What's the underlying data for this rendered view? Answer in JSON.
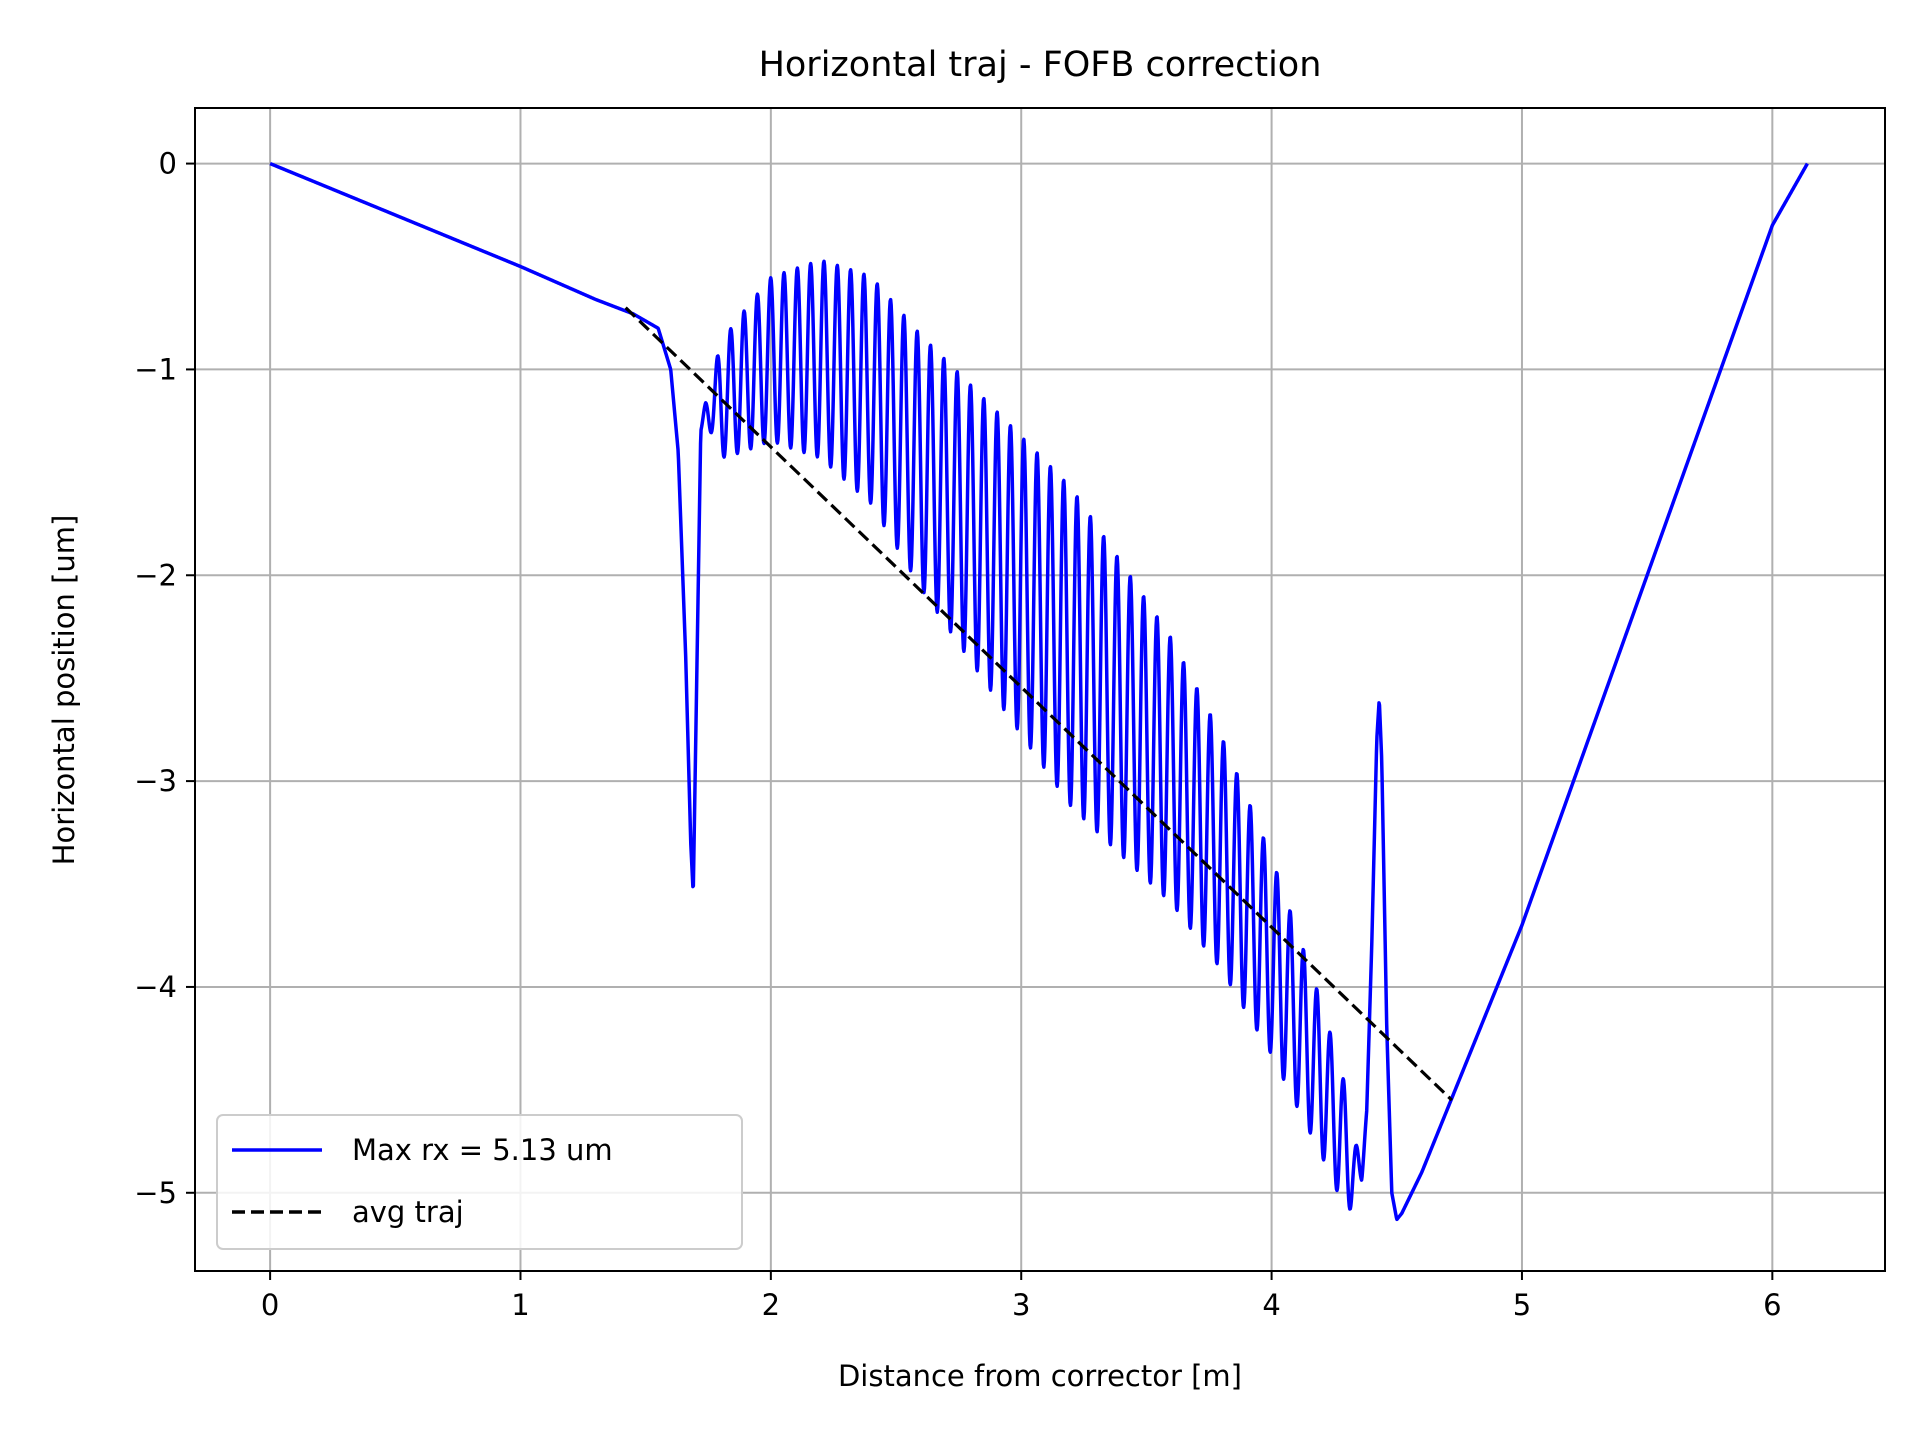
{
  "chart_data": {
    "type": "line",
    "title": "Horizontal traj - FOFB correction",
    "xlabel": "Distance from corrector [m]",
    "ylabel": "Horizontal position [um]",
    "xlim": [
      -0.3,
      6.45
    ],
    "ylim": [
      -5.38,
      0.27
    ],
    "xticks": [
      0,
      1,
      2,
      3,
      4,
      5,
      6
    ],
    "xtick_labels": [
      "0",
      "1",
      "2",
      "3",
      "4",
      "5",
      "6"
    ],
    "yticks": [
      0,
      -1,
      -2,
      -3,
      -4,
      -5
    ],
    "ytick_labels": [
      "0",
      "−1",
      "−2",
      "−3",
      "−4",
      "−5"
    ],
    "grid": true,
    "legend_position": "lower-left",
    "series": [
      {
        "name": "Max rx = 5.13 um",
        "color": "#0000ff",
        "style": "solid",
        "x": [
          0.0,
          0.5,
          1.0,
          1.3,
          1.45,
          1.55,
          1.6,
          1.63,
          1.66,
          1.68,
          1.69,
          1.7,
          1.72,
          1.74,
          1.8,
          2.0,
          2.2,
          2.4,
          2.6,
          2.8,
          3.0,
          3.2,
          3.4,
          3.6,
          3.8,
          4.0,
          4.2,
          4.3,
          4.33,
          4.36,
          4.38,
          4.4,
          4.42,
          4.43,
          4.44,
          4.46,
          4.48,
          4.5,
          4.52,
          4.6,
          4.8,
          5.0,
          5.5,
          6.0,
          6.14
        ],
        "y": [
          0.0,
          -0.25,
          -0.5,
          -0.66,
          -0.73,
          -0.8,
          -1.0,
          -1.4,
          -2.4,
          -3.3,
          -3.55,
          -2.8,
          -1.3,
          -1.2,
          -1.15,
          -0.95,
          -0.95,
          -1.1,
          -1.45,
          -1.75,
          -2.05,
          -2.35,
          -2.65,
          -2.95,
          -3.35,
          -3.85,
          -4.45,
          -4.8,
          -4.9,
          -4.9,
          -4.6,
          -3.8,
          -2.8,
          -2.6,
          -2.9,
          -4.2,
          -5.0,
          -5.13,
          -5.1,
          -4.9,
          -4.3,
          -3.7,
          -2.0,
          -0.3,
          0.0
        ],
        "oscillation": {
          "x_start": 1.72,
          "x_end": 4.38,
          "cycles": 50,
          "amplitude_min": 0.35,
          "amplitude_max": 1.55,
          "amplitude_peak_x": 3.2
        }
      },
      {
        "name": "avg traj",
        "color": "#000000",
        "style": "dashed",
        "x": [
          1.42,
          4.72
        ],
        "y": [
          -0.7,
          -4.55
        ]
      }
    ]
  }
}
